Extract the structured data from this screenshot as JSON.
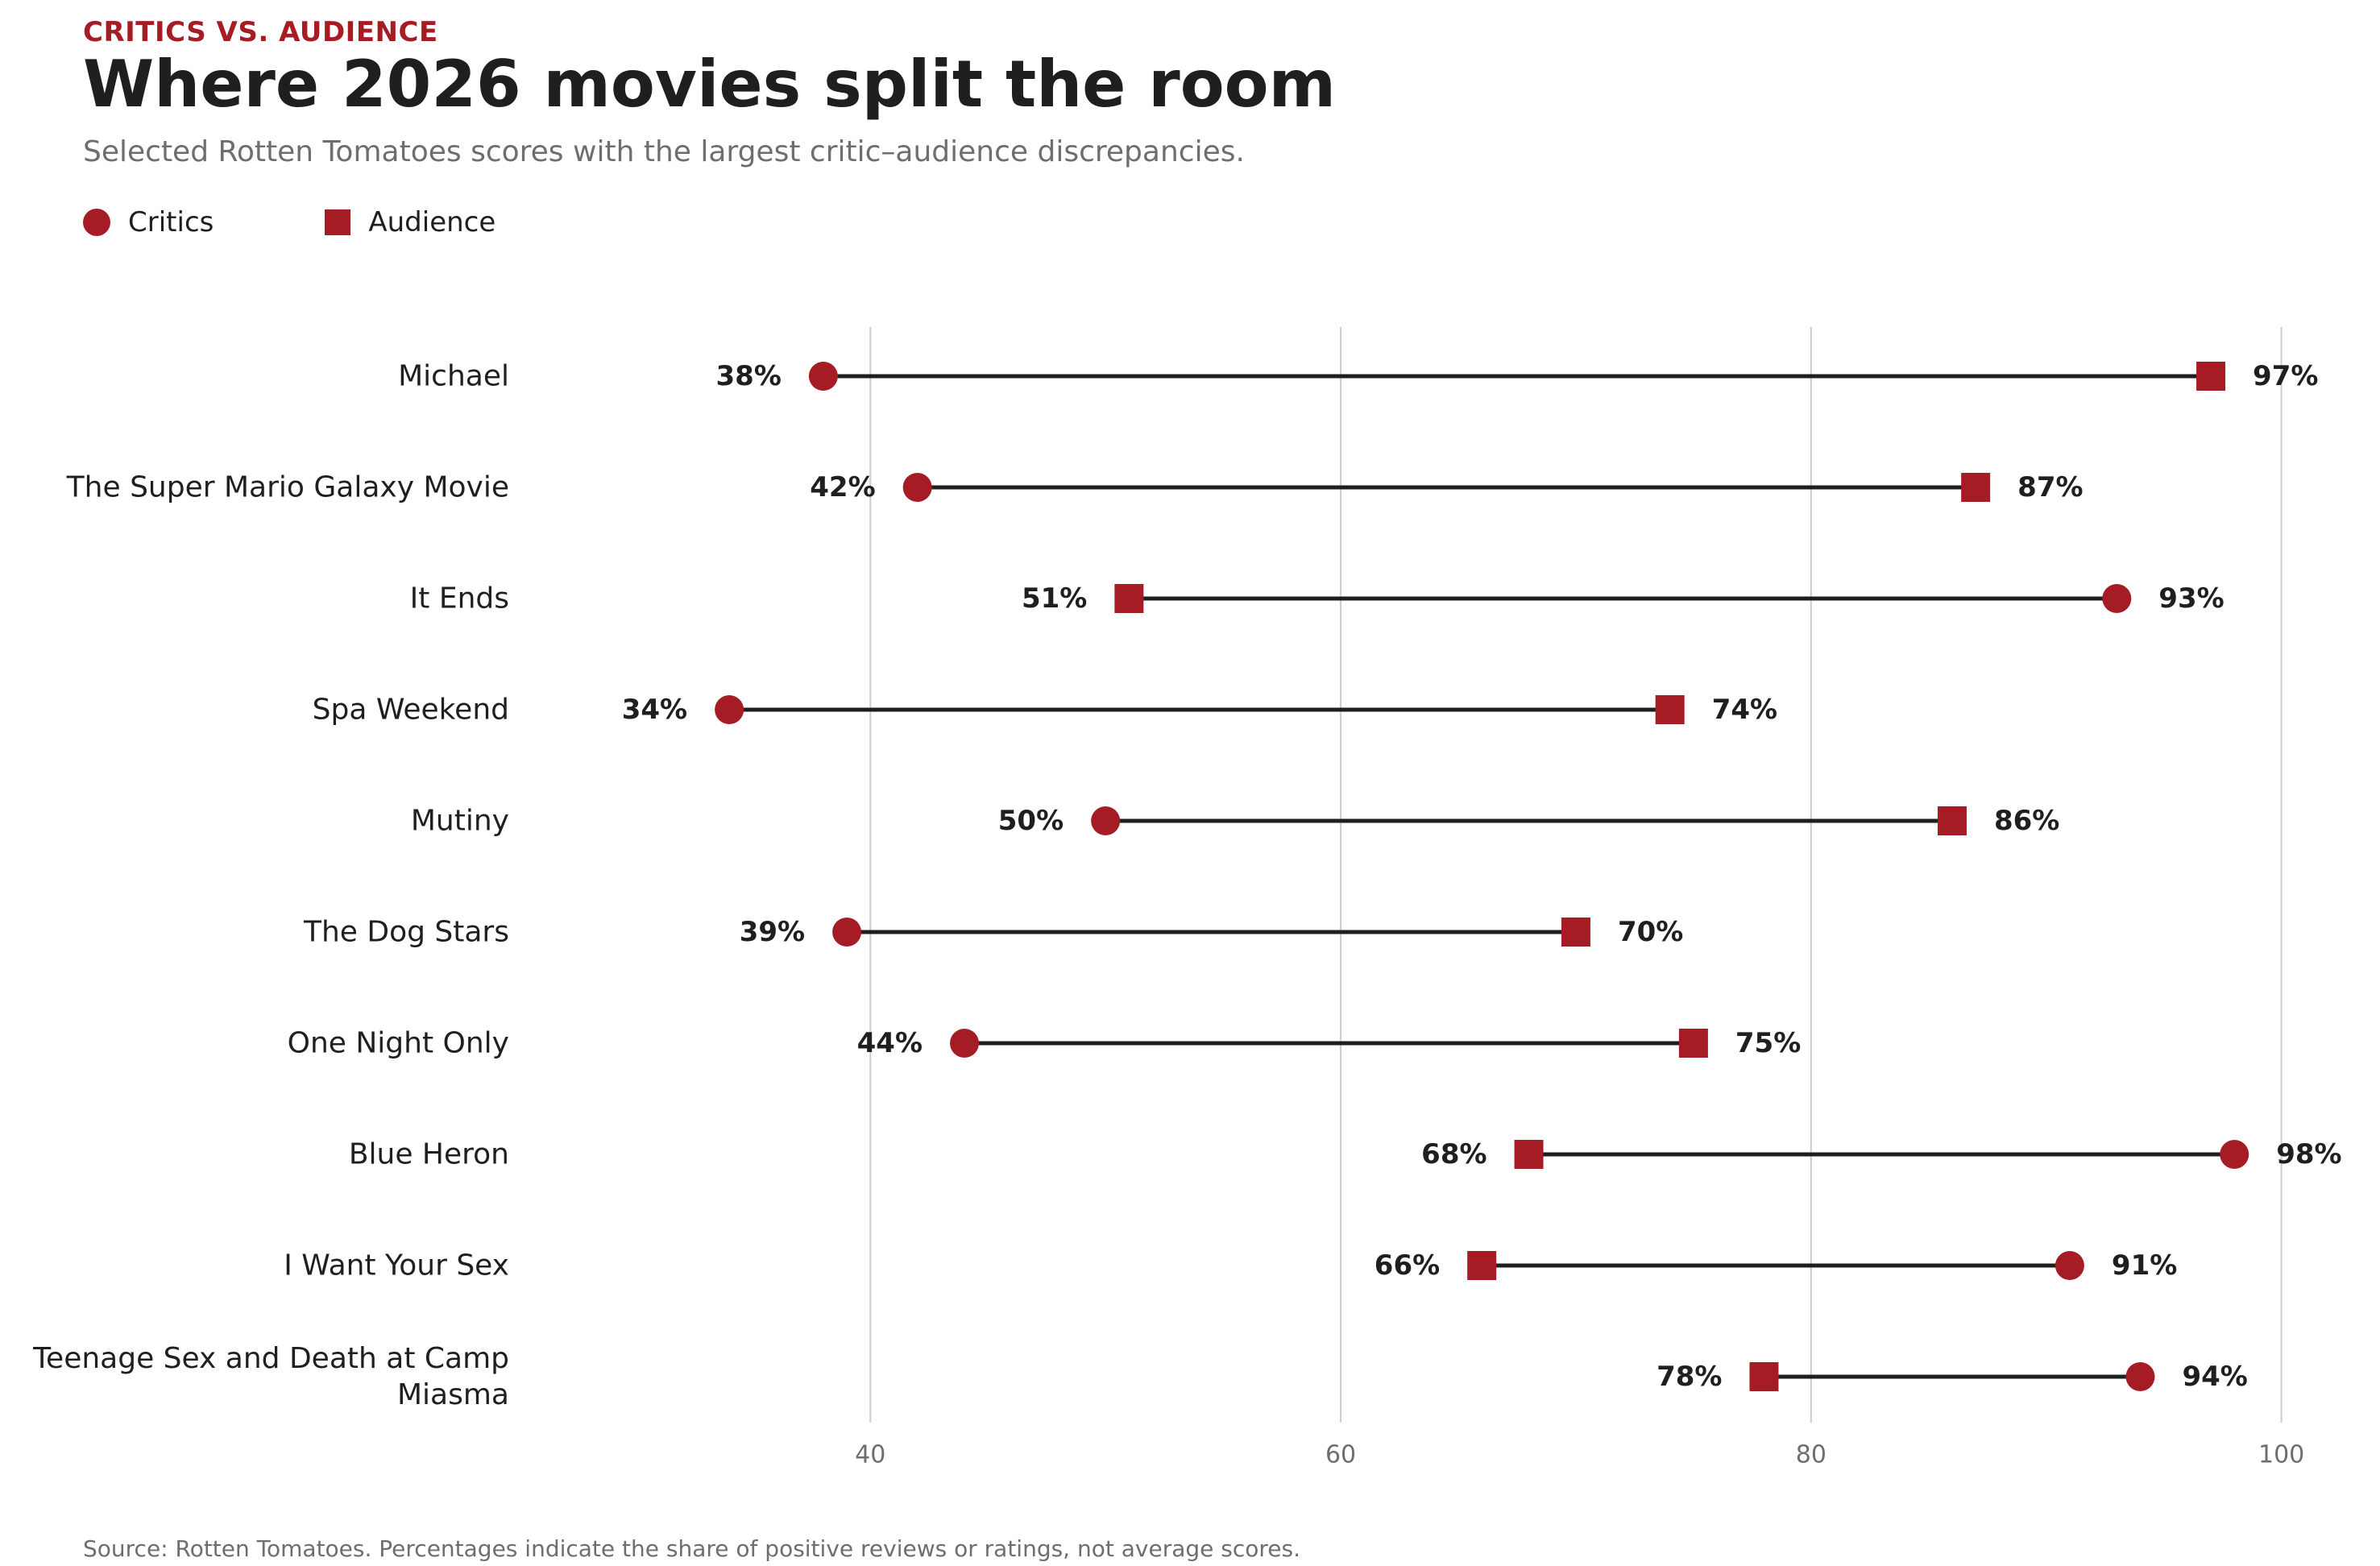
{
  "header": {
    "kicker": "CRITICS VS. AUDIENCE",
    "title": "Where 2026 movies split the room",
    "subtitle": "Selected Rotten Tomatoes scores with the largest critic–audience discrepancies."
  },
  "legend": {
    "critics_label": "Critics",
    "audience_label": "Audience"
  },
  "footer": {
    "source": "Source: Rotten Tomatoes. Percentages indicate the share of positive reviews or ratings, not average scores."
  },
  "colors": {
    "marker": "#a51c24",
    "connector": "#1f1f1f",
    "grid": "#cccccc",
    "label": "#1f1f1f",
    "tick": "#6e6e6e"
  },
  "chart_data": {
    "type": "dumbbell",
    "title": "Where 2026 movies split the room",
    "xlabel": "",
    "ylabel": "",
    "xlim": [
      28,
      102
    ],
    "xticks": [
      40,
      60,
      80,
      100
    ],
    "grid": "vertical",
    "value_suffix": "%",
    "categories": [
      "Michael",
      "The Super Mario Galaxy Movie",
      "It Ends",
      "Spa Weekend",
      "Mutiny",
      "The Dog Stars",
      "One Night Only",
      "Blue Heron",
      "I Want Your Sex",
      "Teenage Sex and Death at Camp Miasma"
    ],
    "series": [
      {
        "name": "Critics",
        "marker": "circle",
        "values": [
          38,
          42,
          93,
          34,
          50,
          39,
          44,
          98,
          91,
          94
        ]
      },
      {
        "name": "Audience",
        "marker": "square",
        "values": [
          97,
          87,
          51,
          74,
          86,
          70,
          75,
          68,
          66,
          78
        ]
      }
    ]
  }
}
